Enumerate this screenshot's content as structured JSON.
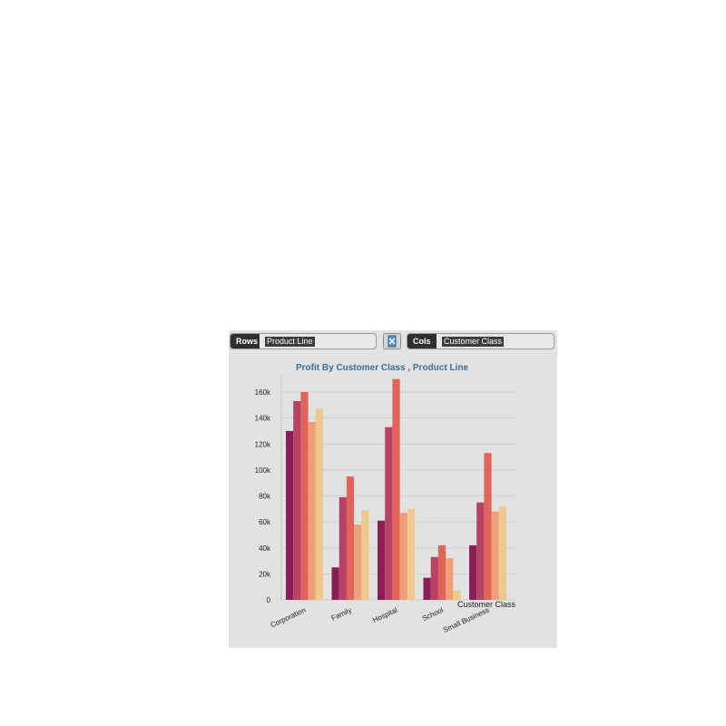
{
  "toolbar": {
    "rows_label": "Rows",
    "rows_value": "Product Line",
    "cols_label": "Cols",
    "cols_value": "Customer Class"
  },
  "chart_data": {
    "type": "bar",
    "title": "Profit By Customer Class , Product Line",
    "xlabel": "Customer Class",
    "ylabel": "",
    "categories": [
      "Corporation",
      "Family",
      "Hospital",
      "School",
      "Small Business"
    ],
    "ylim": [
      0,
      160000
    ],
    "yticks": [
      "0",
      "20k",
      "40k",
      "60k",
      "80k",
      "100k",
      "120k",
      "140k",
      "160k"
    ],
    "series": [
      {
        "color": "#8b1e56",
        "values": [
          130000,
          25000,
          61000,
          17000,
          42000
        ]
      },
      {
        "color": "#b84166",
        "values": [
          153000,
          79000,
          133000,
          33000,
          75000
        ]
      },
      {
        "color": "#e0645c",
        "values": [
          160000,
          95000,
          170000,
          42000,
          113000
        ]
      },
      {
        "color": "#ee9f78",
        "values": [
          137000,
          58000,
          67000,
          32000,
          68000
        ]
      },
      {
        "color": "#edc98b",
        "values": [
          147000,
          69000,
          70000,
          7000,
          72000
        ]
      }
    ],
    "grid": true,
    "legend": "none"
  }
}
